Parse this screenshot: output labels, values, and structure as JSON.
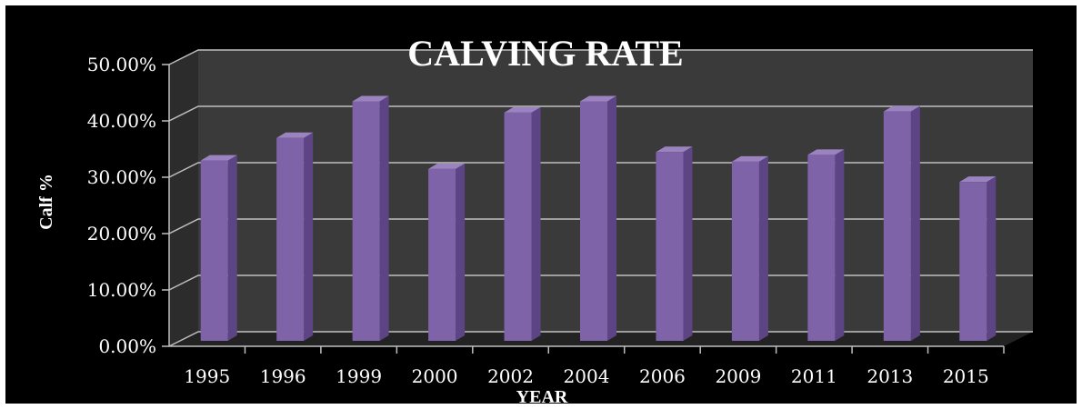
{
  "chart_data": {
    "type": "bar",
    "title": "CALVING RATE",
    "xlabel": "YEAR",
    "ylabel": "Calf %",
    "categories": [
      "1995",
      "1996",
      "1999",
      "2000",
      "2002",
      "2004",
      "2006",
      "2009",
      "2011",
      "2013",
      "2015"
    ],
    "values": [
      32.0,
      36.0,
      42.5,
      30.5,
      40.5,
      42.5,
      33.5,
      31.8,
      33.0,
      40.7,
      28.2
    ],
    "yticks": [
      "0.00%",
      "10.00%",
      "20.00%",
      "30.00%",
      "40.00%",
      "50.00%"
    ],
    "ylim": [
      0,
      50
    ],
    "grid": true,
    "legend": "none",
    "colors": {
      "background": "#000000",
      "back_wall": "#3a3a3a",
      "side_wall": "#2c2c2c",
      "floor": "#232323",
      "gridline": "#bfbfbf",
      "bar_front": "#7f63a8",
      "bar_top": "#9b83c0",
      "bar_side": "#5d4585"
    }
  }
}
